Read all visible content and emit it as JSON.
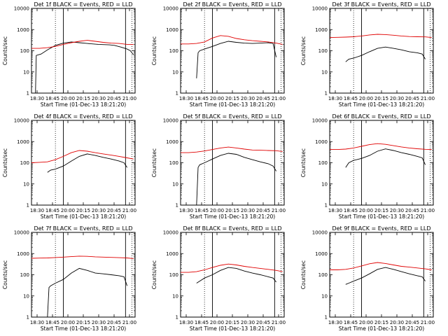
{
  "chart_data": [
    {
      "type": "line",
      "title": "Det 1f BLACK = Events, RED = LLD",
      "xlabel": "Start Time (01-Dec-13 18:21:20)",
      "ylabel": "Counts/sec",
      "xtick_labels": [
        "18:30",
        "18:45",
        "20:00",
        "20:15",
        "20:30",
        "20:45",
        "21:00"
      ],
      "ytick_labels": [
        "1",
        "10",
        "100",
        "1000",
        "10000"
      ],
      "ylim": [
        1,
        10000
      ],
      "yscale": "log",
      "series": [
        {
          "color": "#000000",
          "x": [
            0,
            2.5,
            3,
            6,
            10,
            15,
            20,
            25,
            30,
            35,
            42,
            49,
            52,
            56,
            60,
            62,
            63,
            64
          ],
          "y": [
            1,
            1,
            60,
            70,
            110,
            180,
            230,
            260,
            240,
            220,
            200,
            190,
            180,
            150,
            120,
            100,
            80,
            65
          ]
        },
        {
          "color": "#e00000",
          "x": [
            0,
            5,
            10,
            15,
            20,
            25,
            30,
            35,
            40,
            45,
            50,
            55,
            60,
            64
          ],
          "y": [
            130,
            130,
            140,
            160,
            200,
            240,
            280,
            310,
            280,
            250,
            230,
            220,
            200,
            200
          ]
        }
      ],
      "markers": {
        "dotted": [
          15,
          63
        ],
        "solid": [
          20,
          59
        ]
      }
    },
    {
      "type": "line",
      "title": "Det 2f BLACK = Events, RED = LLD",
      "xlabel": "Start Time (01-Dec-13 18:21:20)",
      "ylabel": "Counts/sec",
      "xtick_labels": [
        "18:30",
        "18:45",
        "20:00",
        "20:15",
        "20:30",
        "20:45",
        "21:00"
      ],
      "ytick_labels": [
        "1",
        "10",
        "100",
        "1000",
        "10000"
      ],
      "ylim": [
        1,
        10000
      ],
      "yscale": "log",
      "series": [
        {
          "color": "#000000",
          "x": [
            10,
            11,
            12,
            15,
            20,
            25,
            30,
            35,
            40,
            45,
            50,
            55,
            58,
            60
          ],
          "y": [
            5,
            80,
            100,
            120,
            160,
            220,
            280,
            250,
            230,
            220,
            230,
            240,
            220,
            50
          ]
        },
        {
          "color": "#e00000",
          "x": [
            0,
            5,
            10,
            15,
            20,
            25,
            30,
            35,
            40,
            45,
            50,
            55,
            60,
            64
          ],
          "y": [
            210,
            210,
            220,
            260,
            400,
            520,
            480,
            380,
            330,
            300,
            280,
            260,
            230,
            200
          ]
        }
      ],
      "markers": {
        "dotted": [
          15,
          63
        ],
        "solid": [
          20,
          59
        ]
      }
    },
    {
      "type": "line",
      "title": "Det 3f BLACK = Events, RED = LLD",
      "xlabel": "Start Time (01-Dec-13 18:21:20)",
      "ylabel": "Counts/sec",
      "xtick_labels": [
        "18:30",
        "18:45",
        "20:00",
        "20:15",
        "20:30",
        "20:45",
        "21:00"
      ],
      "ytick_labels": [
        "1",
        "10",
        "100",
        "1000",
        "10000"
      ],
      "ylim": [
        1,
        10000
      ],
      "yscale": "log",
      "series": [
        {
          "color": "#000000",
          "x": [
            10,
            12,
            15,
            20,
            25,
            30,
            35,
            40,
            45,
            50,
            55,
            58,
            60
          ],
          "y": [
            30,
            40,
            45,
            60,
            90,
            130,
            150,
            130,
            110,
            90,
            80,
            70,
            40
          ]
        },
        {
          "color": "#e00000",
          "x": [
            0,
            5,
            10,
            15,
            20,
            25,
            30,
            35,
            40,
            45,
            50,
            55,
            60,
            64
          ],
          "y": [
            420,
            430,
            440,
            460,
            500,
            560,
            600,
            580,
            540,
            500,
            470,
            460,
            450,
            420
          ]
        }
      ],
      "markers": {
        "dotted": [
          15,
          63
        ],
        "solid": [
          20,
          59
        ]
      }
    },
    {
      "type": "line",
      "title": "Det 4f BLACK = Events, RED = LLD",
      "xlabel": "Start Time (01-Dec-13 18:21:20)",
      "ylabel": "Counts/sec",
      "xtick_labels": [
        "18:30",
        "18:45",
        "20:00",
        "20:15",
        "20:30",
        "20:45",
        "21:00"
      ],
      "ytick_labels": [
        "1",
        "10",
        "100",
        "1000",
        "10000"
      ],
      "ylim": [
        1,
        10000
      ],
      "yscale": "log",
      "series": [
        {
          "color": "#000000",
          "x": [
            10,
            12,
            15,
            20,
            25,
            30,
            35,
            40,
            45,
            50,
            55,
            58,
            60
          ],
          "y": [
            35,
            45,
            50,
            70,
            120,
            200,
            260,
            220,
            180,
            150,
            120,
            100,
            60
          ]
        },
        {
          "color": "#e00000",
          "x": [
            0,
            5,
            10,
            15,
            20,
            25,
            30,
            35,
            40,
            45,
            50,
            55,
            60,
            64
          ],
          "y": [
            100,
            105,
            110,
            140,
            200,
            300,
            380,
            350,
            300,
            260,
            230,
            200,
            170,
            150
          ]
        }
      ],
      "markers": {
        "dotted": [
          15,
          63
        ],
        "solid": [
          20,
          59
        ]
      }
    },
    {
      "type": "line",
      "title": "Det 5f BLACK = Events, RED = LLD",
      "xlabel": "Start Time (01-Dec-13 18:21:20)",
      "ylabel": "Counts/sec",
      "xtick_labels": [
        "18:30",
        "18:45",
        "20:00",
        "20:15",
        "20:30",
        "20:45",
        "21:00"
      ],
      "ytick_labels": [
        "1",
        "10",
        "100",
        "1000",
        "10000"
      ],
      "ylim": [
        1,
        10000
      ],
      "yscale": "log",
      "series": [
        {
          "color": "#000000",
          "x": [
            10,
            11,
            12,
            15,
            20,
            25,
            30,
            35,
            40,
            45,
            50,
            55,
            58,
            60
          ],
          "y": [
            1,
            60,
            80,
            100,
            150,
            220,
            280,
            250,
            180,
            140,
            110,
            90,
            70,
            40
          ]
        },
        {
          "color": "#e00000",
          "x": [
            0,
            5,
            10,
            15,
            20,
            25,
            30,
            35,
            40,
            45,
            50,
            55,
            60,
            64
          ],
          "y": [
            300,
            300,
            320,
            360,
            420,
            500,
            550,
            500,
            440,
            400,
            390,
            380,
            370,
            340
          ]
        }
      ],
      "markers": {
        "dotted": [
          15,
          63
        ],
        "solid": [
          20,
          59
        ]
      }
    },
    {
      "type": "line",
      "title": "Det 6f BLACK = Events, RED = LLD",
      "xlabel": "Start Time (01-Dec-13 18:21:20)",
      "ylabel": "Counts/sec",
      "xtick_labels": [
        "18:30",
        "18:45",
        "20:00",
        "20:15",
        "20:30",
        "20:45",
        "21:00"
      ],
      "ytick_labels": [
        "1",
        "10",
        "100",
        "1000",
        "10000"
      ],
      "ylim": [
        1,
        10000
      ],
      "yscale": "log",
      "series": [
        {
          "color": "#000000",
          "x": [
            10,
            12,
            15,
            20,
            25,
            30,
            35,
            40,
            45,
            50,
            55,
            58,
            60
          ],
          "y": [
            60,
            100,
            130,
            160,
            220,
            350,
            450,
            380,
            300,
            250,
            200,
            170,
            80
          ]
        },
        {
          "color": "#e00000",
          "x": [
            0,
            5,
            10,
            15,
            20,
            25,
            30,
            35,
            40,
            45,
            50,
            55,
            60,
            64
          ],
          "y": [
            420,
            420,
            440,
            500,
            600,
            720,
            800,
            740,
            640,
            560,
            500,
            460,
            430,
            420
          ]
        }
      ],
      "markers": {
        "dotted": [
          15,
          63
        ],
        "solid": [
          20,
          59
        ]
      }
    },
    {
      "type": "line",
      "title": "Det 7f BLACK = Events, RED = LLD",
      "xlabel": "Start Time (01-Dec-13 18:21:20)",
      "ylabel": "Counts/sec",
      "xtick_labels": [
        "18:30",
        "18:45",
        "20:00",
        "20:15",
        "20:30",
        "20:45",
        "21:00"
      ],
      "ytick_labels": [
        "1",
        "10",
        "100",
        "1000",
        "10000"
      ],
      "ylim": [
        1,
        10000
      ],
      "yscale": "log",
      "series": [
        {
          "color": "#000000",
          "x": [
            10,
            11,
            12,
            15,
            20,
            25,
            30,
            35,
            40,
            45,
            50,
            55,
            58,
            60
          ],
          "y": [
            1,
            25,
            30,
            40,
            60,
            120,
            200,
            160,
            120,
            110,
            100,
            90,
            80,
            30
          ]
        },
        {
          "color": "#e00000",
          "x": [
            0,
            5,
            10,
            15,
            20,
            25,
            30,
            35,
            40,
            45,
            50,
            55,
            60,
            64
          ],
          "y": [
            600,
            610,
            620,
            650,
            680,
            720,
            760,
            740,
            700,
            680,
            660,
            640,
            620,
            580
          ]
        }
      ],
      "markers": {
        "dotted": [
          15,
          63
        ],
        "solid": [
          20,
          59
        ]
      }
    },
    {
      "type": "line",
      "title": "Det 8f BLACK = Events, RED = LLD",
      "xlabel": "Start Time (01-Dec-13 18:21:20)",
      "ylabel": "Counts/sec",
      "xtick_labels": [
        "18:30",
        "18:45",
        "20:00",
        "20:15",
        "20:30",
        "20:45",
        "21:00"
      ],
      "ytick_labels": [
        "1",
        "10",
        "100",
        "1000",
        "10000"
      ],
      "ylim": [
        1,
        10000
      ],
      "yscale": "log",
      "series": [
        {
          "color": "#000000",
          "x": [
            10,
            12,
            15,
            20,
            25,
            30,
            35,
            40,
            45,
            50,
            55,
            58,
            60
          ],
          "y": [
            40,
            50,
            70,
            100,
            160,
            220,
            200,
            150,
            120,
            100,
            80,
            70,
            45
          ]
        },
        {
          "color": "#e00000",
          "x": [
            0,
            5,
            10,
            15,
            20,
            25,
            30,
            35,
            40,
            45,
            50,
            55,
            60,
            64
          ],
          "y": [
            130,
            130,
            140,
            170,
            220,
            280,
            320,
            290,
            250,
            220,
            200,
            180,
            160,
            140
          ]
        }
      ],
      "markers": {
        "dotted": [
          15,
          63
        ],
        "solid": [
          20,
          59
        ]
      }
    },
    {
      "type": "line",
      "title": "Det 9f BLACK = Events, RED = LLD",
      "xlabel": "Start Time (01-Dec-13 18:21:20)",
      "ylabel": "Counts/sec",
      "xtick_labels": [
        "18:30",
        "18:45",
        "20:00",
        "20:15",
        "20:30",
        "20:45",
        "21:00"
      ],
      "ytick_labels": [
        "1",
        "10",
        "100",
        "1000",
        "10000"
      ],
      "ylim": [
        1,
        10000
      ],
      "yscale": "log",
      "series": [
        {
          "color": "#000000",
          "x": [
            10,
            12,
            15,
            20,
            25,
            30,
            35,
            40,
            45,
            50,
            55,
            58,
            60
          ],
          "y": [
            35,
            40,
            50,
            70,
            110,
            180,
            220,
            180,
            140,
            110,
            90,
            80,
            50
          ]
        },
        {
          "color": "#e00000",
          "x": [
            0,
            5,
            10,
            15,
            20,
            25,
            30,
            35,
            40,
            45,
            50,
            55,
            60,
            64
          ],
          "y": [
            170,
            170,
            180,
            210,
            260,
            330,
            380,
            340,
            290,
            250,
            230,
            210,
            190,
            170
          ]
        }
      ],
      "markers": {
        "dotted": [
          15,
          63
        ],
        "solid": [
          20,
          59
        ]
      }
    }
  ]
}
